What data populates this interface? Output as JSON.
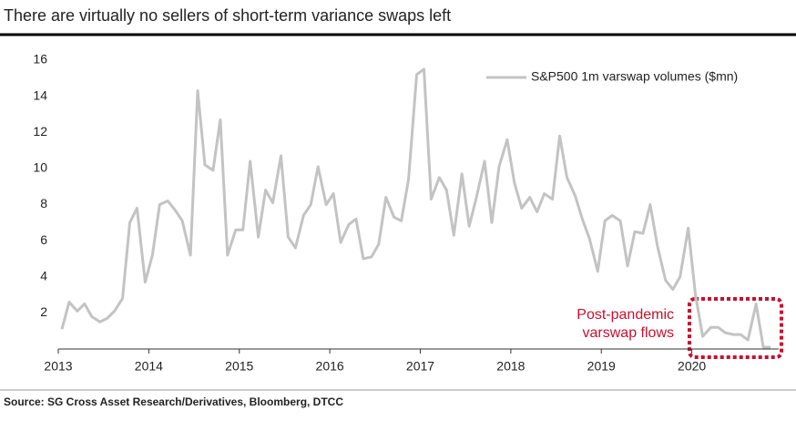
{
  "chart_data": {
    "type": "line",
    "title": "There are virtually no sellers of short-term variance swaps left",
    "source": "Source: SG Cross Asset Research/Derivatives, Bloomberg, DTCC",
    "annotation": [
      "Post-pandemic",
      "varswap flows"
    ],
    "xlim": [
      2013,
      2021
    ],
    "xticks": [
      2013,
      2014,
      2015,
      2016,
      2017,
      2018,
      2019,
      2020
    ],
    "ylim": [
      0,
      16
    ],
    "yticks": [
      2,
      4,
      6,
      8,
      10,
      12,
      14,
      16
    ],
    "grid": false,
    "legend": "top-right",
    "x": [
      2013.04,
      2013.12,
      2013.21,
      2013.29,
      2013.37,
      2013.46,
      2013.54,
      2013.62,
      2013.71,
      2013.79,
      2013.87,
      2013.96,
      2014.04,
      2014.12,
      2014.21,
      2014.29,
      2014.37,
      2014.46,
      2014.54,
      2014.62,
      2014.71,
      2014.79,
      2014.87,
      2014.96,
      2015.04,
      2015.12,
      2015.21,
      2015.29,
      2015.37,
      2015.46,
      2015.54,
      2015.62,
      2015.71,
      2015.79,
      2015.87,
      2015.96,
      2016.04,
      2016.12,
      2016.21,
      2016.29,
      2016.37,
      2016.46,
      2016.54,
      2016.62,
      2016.71,
      2016.79,
      2016.87,
      2016.96,
      2017.04,
      2017.12,
      2017.21,
      2017.29,
      2017.37,
      2017.46,
      2017.54,
      2017.62,
      2017.71,
      2017.79,
      2017.87,
      2017.96,
      2018.04,
      2018.12,
      2018.21,
      2018.29,
      2018.37,
      2018.46,
      2018.54,
      2018.62,
      2018.71,
      2018.79,
      2018.87,
      2018.96,
      2019.04,
      2019.12,
      2019.21,
      2019.29,
      2019.37,
      2019.46,
      2019.54,
      2019.62,
      2019.71,
      2019.79,
      2019.87,
      2019.96,
      2020.04,
      2020.12,
      2020.21,
      2020.29,
      2020.37,
      2020.46,
      2020.54,
      2020.62,
      2020.71,
      2020.79,
      2020.87
    ],
    "series": [
      {
        "name": "S&P500 1m varswap volumes ($mn)",
        "color": "#c3c3c3",
        "values": [
          1.1,
          2.6,
          2.1,
          2.5,
          1.8,
          1.5,
          1.7,
          2.1,
          2.8,
          7.0,
          7.8,
          3.7,
          5.2,
          8.0,
          8.2,
          7.7,
          7.1,
          5.2,
          14.3,
          10.2,
          9.9,
          12.7,
          5.2,
          6.6,
          6.6,
          10.4,
          6.2,
          8.8,
          8.1,
          10.7,
          6.2,
          5.6,
          7.4,
          8.0,
          10.1,
          8.0,
          8.6,
          5.9,
          6.9,
          7.2,
          5.0,
          5.1,
          5.8,
          8.4,
          7.3,
          7.1,
          9.4,
          15.2,
          15.5,
          8.3,
          9.5,
          8.8,
          6.3,
          9.7,
          6.8,
          8.4,
          10.4,
          7.0,
          10.1,
          11.6,
          9.2,
          7.8,
          8.4,
          7.6,
          8.6,
          8.3,
          11.8,
          9.5,
          8.5,
          7.2,
          6.1,
          4.3,
          7.1,
          7.4,
          7.1,
          4.6,
          6.5,
          6.4,
          8.0,
          5.7,
          3.8,
          3.3,
          4.0,
          6.7,
          3.0,
          0.7,
          1.2,
          1.2,
          0.9,
          0.8,
          0.8,
          0.5,
          2.5,
          0.1,
          0.1
        ]
      }
    ]
  }
}
